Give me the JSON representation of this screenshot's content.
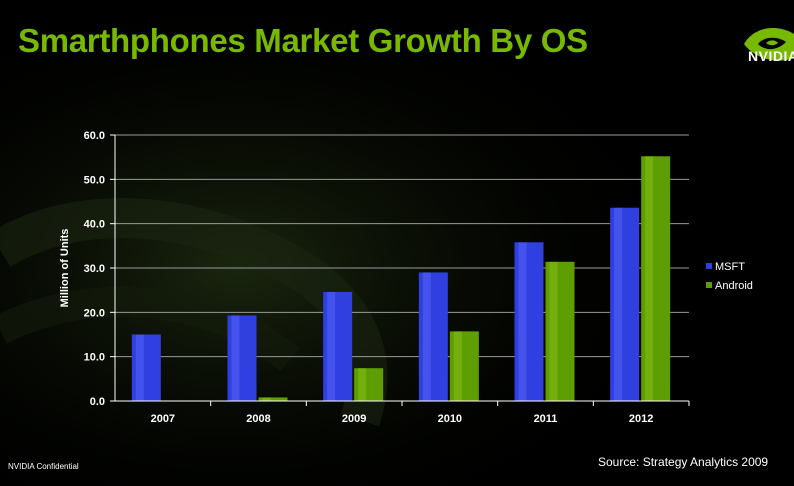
{
  "slide": {
    "title": "Smarthphones Market Growth By OS",
    "logo_text": "NVIDIA",
    "footer_left": "NVIDIA Confidential",
    "source": "Source: Strategy Analytics 2009"
  },
  "colors": {
    "accent": "#76b900",
    "msft": "#2f3fe0",
    "android": "#5f9e00"
  },
  "chart_data": {
    "type": "bar",
    "categories": [
      "2007",
      "2008",
      "2009",
      "2010",
      "2011",
      "2012"
    ],
    "series": [
      {
        "name": "MSFT",
        "values": [
          15.0,
          19.3,
          24.6,
          29.0,
          35.8,
          43.6
        ]
      },
      {
        "name": "Android",
        "values": [
          0,
          0.8,
          7.4,
          15.7,
          31.4,
          55.2
        ]
      }
    ],
    "ylabel": "Million of Units",
    "xlabel": "",
    "ylim": [
      0,
      60
    ],
    "yticks": [
      "0.0",
      "10.0",
      "20.0",
      "30.0",
      "40.0",
      "50.0",
      "60.0"
    ],
    "grid": true,
    "legend_position": "right"
  }
}
